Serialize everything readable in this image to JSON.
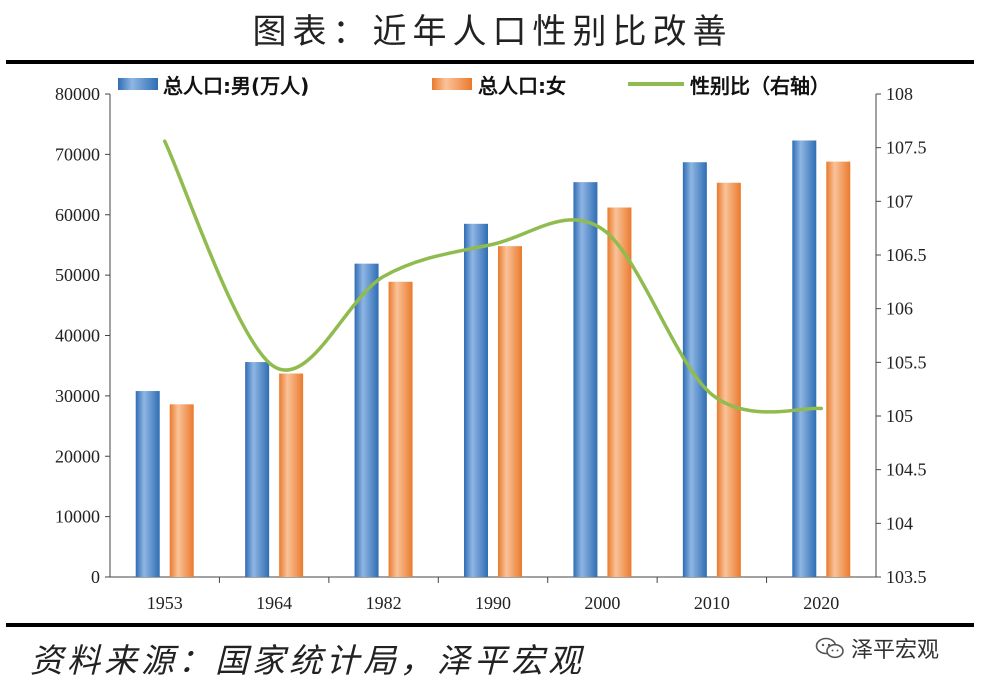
{
  "title": "图表：近年人口性别比改善",
  "source": "资料来源：国家统计局，泽平宏观",
  "watermark": "泽平宏观",
  "chart_data": {
    "type": "bar",
    "categories": [
      "1953",
      "1964",
      "1982",
      "1990",
      "2000",
      "2010",
      "2020"
    ],
    "series": [
      {
        "name": "总人口:男(万人)",
        "type": "bar",
        "axis": "left",
        "color": "#3b76c0",
        "values": [
          30800,
          35600,
          51900,
          58500,
          65400,
          68700,
          72300
        ]
      },
      {
        "name": "总人口:女",
        "type": "bar",
        "axis": "left",
        "color": "#f28a3c",
        "values": [
          28600,
          33700,
          48900,
          54800,
          61200,
          65300,
          68800
        ]
      },
      {
        "name": "性别比（右轴）",
        "type": "line",
        "axis": "right",
        "color": "#8fbb4f",
        "values": [
          107.56,
          105.46,
          106.3,
          106.6,
          106.74,
          105.2,
          105.07
        ]
      }
    ],
    "y_left": {
      "min": 0,
      "max": 80000,
      "ticks": [
        "0",
        "10000",
        "20000",
        "30000",
        "40000",
        "50000",
        "60000",
        "70000",
        "80000"
      ]
    },
    "y_right": {
      "min": 103.5,
      "max": 108,
      "ticks": [
        "103.5",
        "104",
        "104.5",
        "105",
        "105.5",
        "106",
        "106.5",
        "107",
        "107.5",
        "108"
      ]
    },
    "legend_position": "top",
    "grid": false
  }
}
